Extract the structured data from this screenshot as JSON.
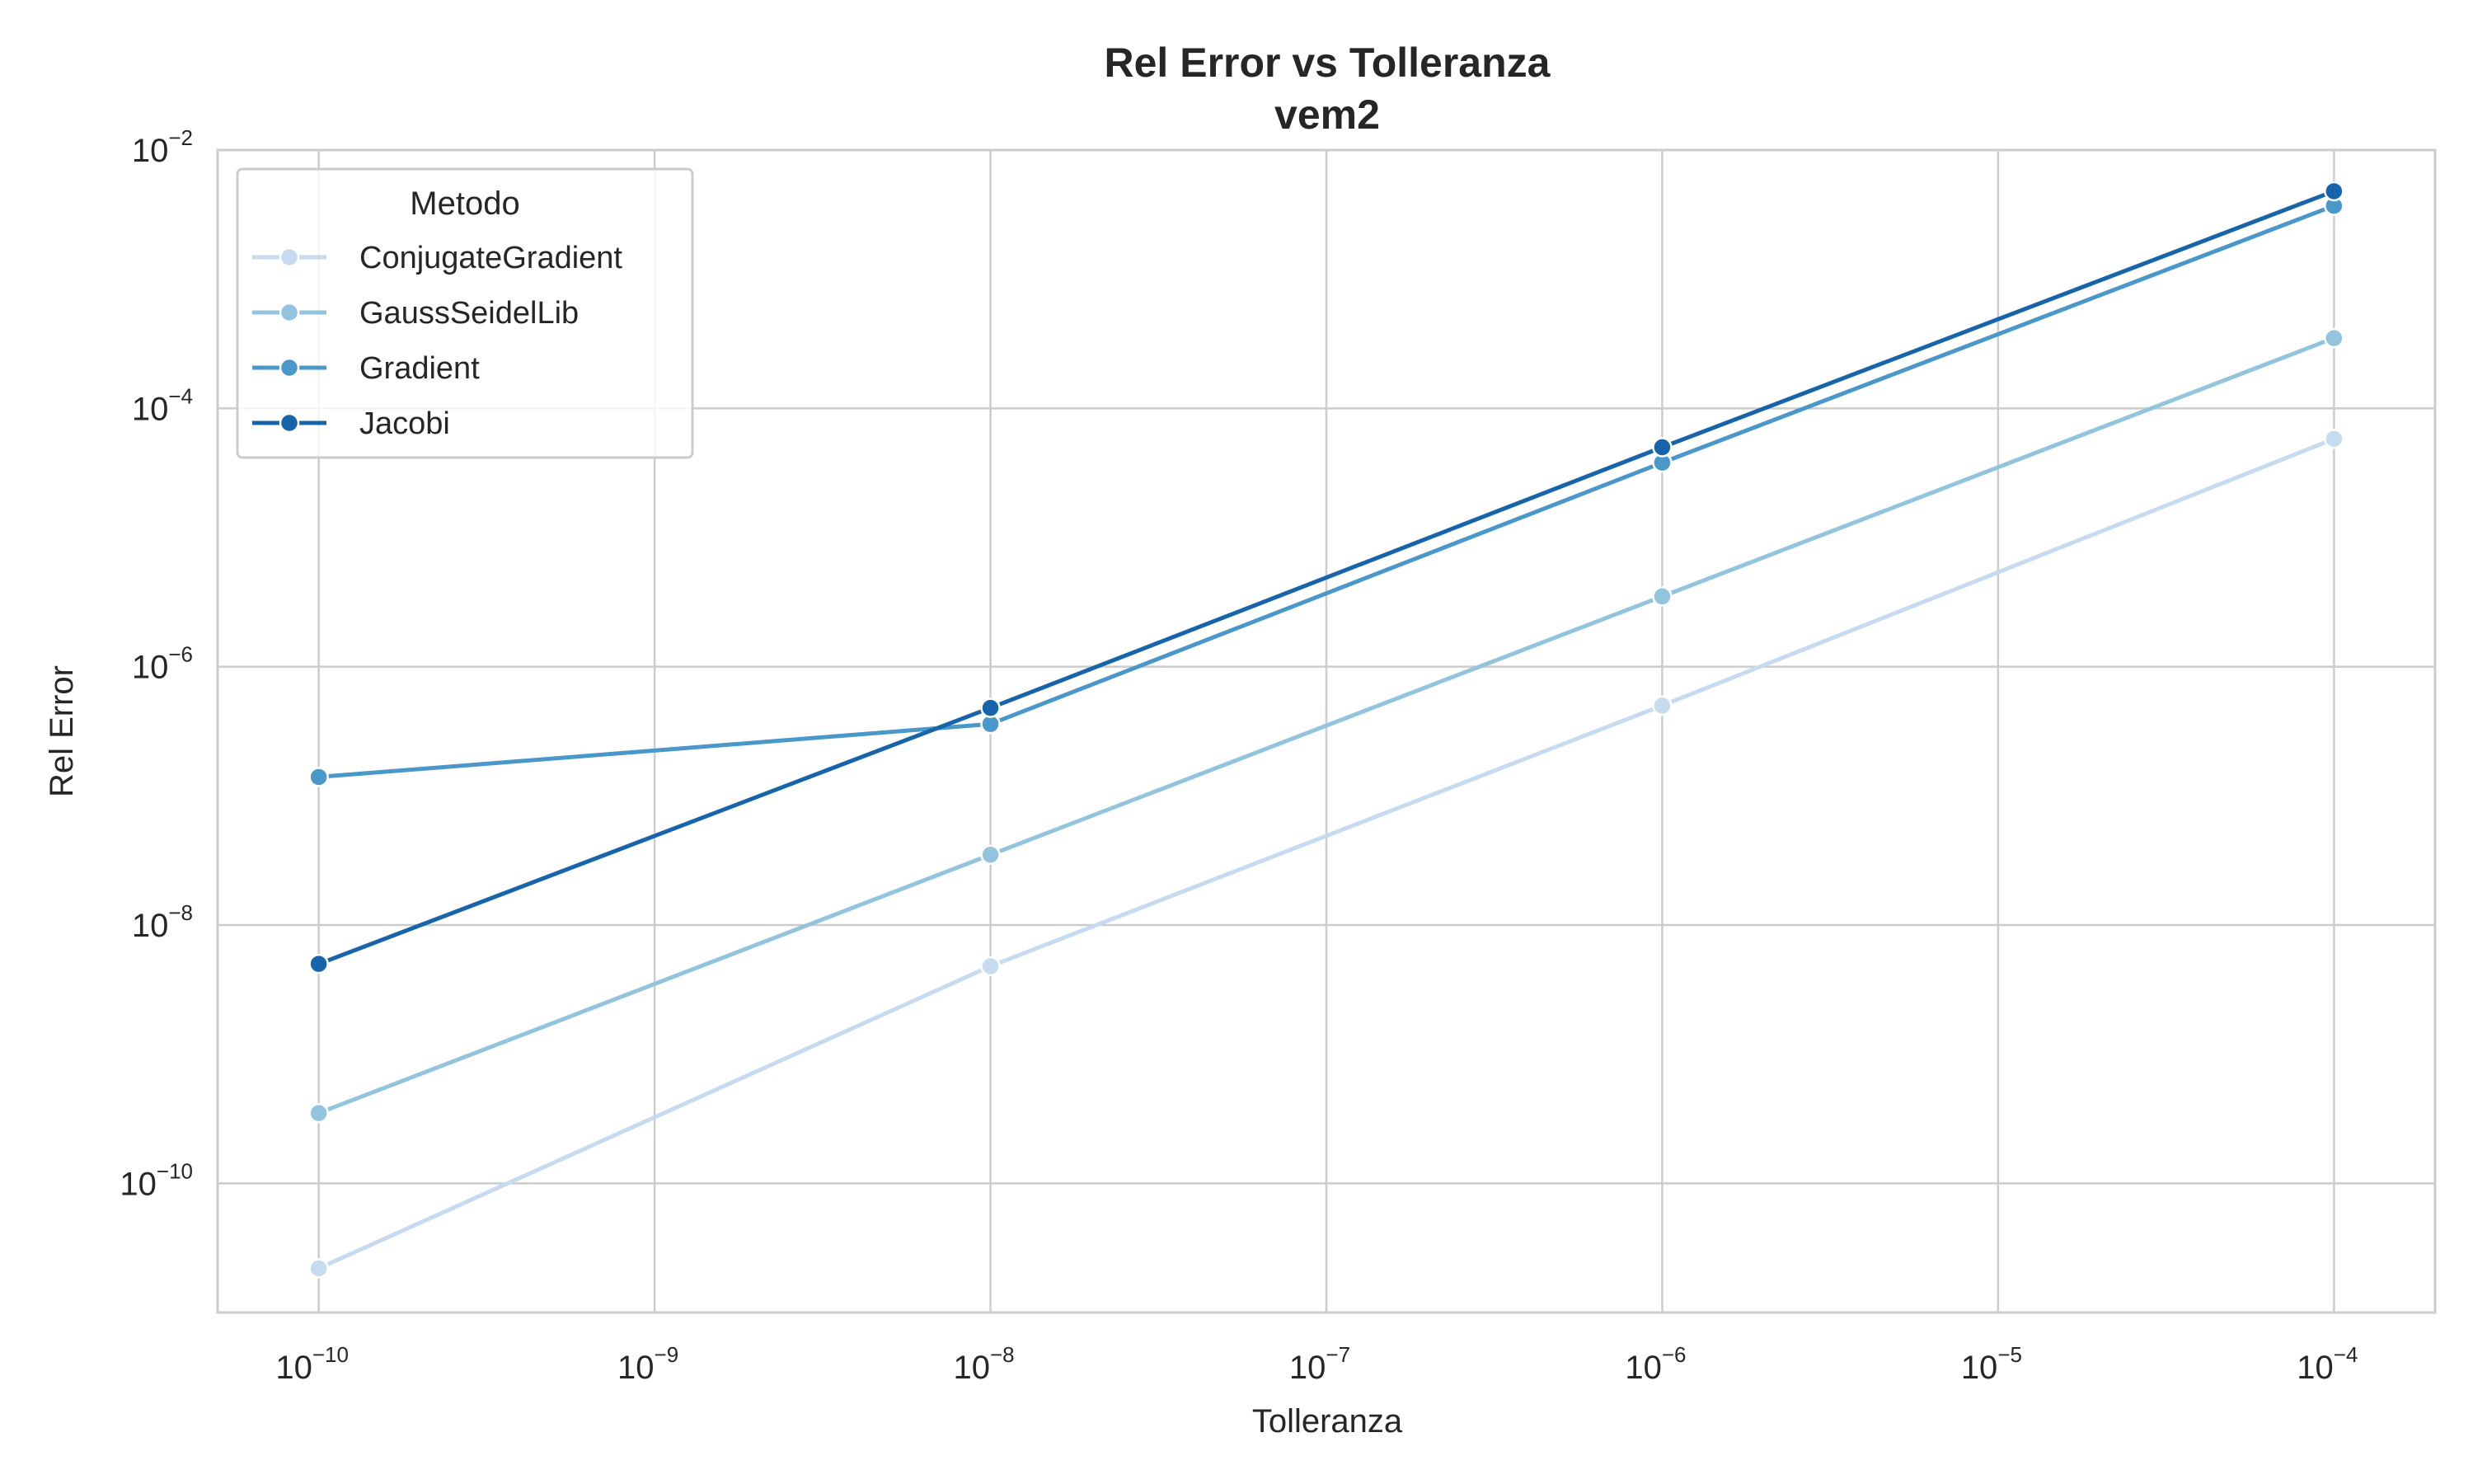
{
  "chart_data": {
    "type": "line",
    "title": "Rel Error vs Tolleranza",
    "subtitle": "vem2",
    "xlabel": "Tolleranza",
    "ylabel": "Rel Error",
    "xscale": "log",
    "yscale": "log",
    "xlim": [
      5e-11,
      0.0002
    ],
    "ylim": [
      1e-11,
      0.01
    ],
    "grid": true,
    "x_ticks": [
      {
        "base": "10",
        "exp": "−10",
        "value": 1e-10
      },
      {
        "base": "10",
        "exp": "−9",
        "value": 1e-09
      },
      {
        "base": "10",
        "exp": "−8",
        "value": 1e-08
      },
      {
        "base": "10",
        "exp": "−7",
        "value": 1e-07
      },
      {
        "base": "10",
        "exp": "−6",
        "value": 1e-06
      },
      {
        "base": "10",
        "exp": "−5",
        "value": 1e-05
      },
      {
        "base": "10",
        "exp": "−4",
        "value": 0.0001
      }
    ],
    "y_ticks": [
      {
        "base": "10",
        "exp": "−10",
        "value": 1e-10
      },
      {
        "base": "10",
        "exp": "−8",
        "value": 1e-08
      },
      {
        "base": "10",
        "exp": "−6",
        "value": 1e-06
      },
      {
        "base": "10",
        "exp": "−4",
        "value": 0.0001
      },
      {
        "base": "10",
        "exp": "−2",
        "value": 0.01
      }
    ],
    "x": [
      1e-10,
      1e-08,
      1e-06,
      0.0001
    ],
    "legend": {
      "title": "Metodo",
      "position": "top-left"
    },
    "series": [
      {
        "name": "ConjugateGradient",
        "color": "#c6dbef",
        "values": [
          2.2e-11,
          4.8e-09,
          5e-07,
          5.8e-05
        ]
      },
      {
        "name": "GaussSeidelLib",
        "color": "#93c4de",
        "values": [
          3.5e-10,
          3.5e-08,
          3.5e-06,
          0.00035
        ]
      },
      {
        "name": "Gradient",
        "color": "#4a98c9",
        "values": [
          1.4e-07,
          3.6e-07,
          3.8e-05,
          0.0037
        ]
      },
      {
        "name": "Jacobi",
        "color": "#1764ab",
        "values": [
          5e-09,
          4.8e-07,
          5e-05,
          0.0048
        ]
      }
    ]
  }
}
